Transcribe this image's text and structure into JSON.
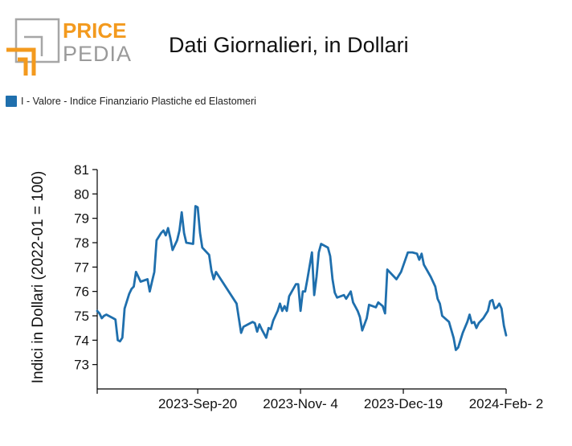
{
  "header": {
    "logo_top": "PRICE",
    "logo_bottom": "PEDIA"
  },
  "colors": {
    "series": "#1f6fad",
    "logo_orange": "#f39a1e",
    "logo_gray": "#9a9a9a"
  },
  "chart_data": {
    "type": "line",
    "title": "Dati Giornalieri, in Dollari",
    "xlabel": "",
    "ylabel": "Indici in Dollari (2022-01 = 100)",
    "ylim": [
      72,
      81
    ],
    "yticks": [
      73,
      74,
      75,
      76,
      77,
      78,
      79,
      80,
      81
    ],
    "xlim": [
      "2023-08-07",
      "2024-02-02"
    ],
    "xticks": [
      {
        "date": "2023-08-07",
        "label": ""
      },
      {
        "date": "2023-09-20",
        "label": "2023-Sep-20"
      },
      {
        "date": "2023-11-04",
        "label": "2023-Nov- 4"
      },
      {
        "date": "2023-12-19",
        "label": "2023-Dec-19"
      },
      {
        "date": "2024-02-02",
        "label": "2024-Feb- 2"
      }
    ],
    "legend_position": "top-left",
    "grid": false,
    "series": [
      {
        "name": "I - Valore - Indice Finanziario Plastiche ed Elastomeri",
        "points": [
          [
            "2023-08-07",
            75.2
          ],
          [
            "2023-08-08",
            75.1
          ],
          [
            "2023-08-09",
            74.9
          ],
          [
            "2023-08-10",
            75.0
          ],
          [
            "2023-08-11",
            75.05
          ],
          [
            "2023-08-14",
            74.9
          ],
          [
            "2023-08-15",
            74.85
          ],
          [
            "2023-08-16",
            74.0
          ],
          [
            "2023-08-17",
            73.95
          ],
          [
            "2023-08-18",
            74.1
          ],
          [
            "2023-08-19",
            75.3
          ],
          [
            "2023-08-21",
            75.9
          ],
          [
            "2023-08-22",
            76.1
          ],
          [
            "2023-08-23",
            76.2
          ],
          [
            "2023-08-24",
            76.8
          ],
          [
            "2023-08-25",
            76.6
          ],
          [
            "2023-08-26",
            76.4
          ],
          [
            "2023-08-29",
            76.5
          ],
          [
            "2023-08-30",
            76.0
          ],
          [
            "2023-08-31",
            76.4
          ],
          [
            "2023-09-01",
            76.8
          ],
          [
            "2023-09-02",
            78.1
          ],
          [
            "2023-09-04",
            78.4
          ],
          [
            "2023-09-05",
            78.5
          ],
          [
            "2023-09-06",
            78.3
          ],
          [
            "2023-09-07",
            78.6
          ],
          [
            "2023-09-08",
            78.2
          ],
          [
            "2023-09-09",
            77.7
          ],
          [
            "2023-09-11",
            78.1
          ],
          [
            "2023-09-12",
            78.5
          ],
          [
            "2023-09-13",
            79.25
          ],
          [
            "2023-09-14",
            78.4
          ],
          [
            "2023-09-15",
            78.0
          ],
          [
            "2023-09-18",
            77.95
          ],
          [
            "2023-09-19",
            79.5
          ],
          [
            "2023-09-20",
            79.45
          ],
          [
            "2023-09-21",
            78.4
          ],
          [
            "2023-09-22",
            77.8
          ],
          [
            "2023-09-25",
            77.5
          ],
          [
            "2023-09-26",
            76.85
          ],
          [
            "2023-09-27",
            76.5
          ],
          [
            "2023-09-28",
            76.8
          ],
          [
            "2023-10-07",
            75.5
          ],
          [
            "2023-10-09",
            74.3
          ],
          [
            "2023-10-10",
            74.55
          ],
          [
            "2023-10-12",
            74.65
          ],
          [
            "2023-10-14",
            74.75
          ],
          [
            "2023-10-15",
            74.7
          ],
          [
            "2023-10-16",
            74.35
          ],
          [
            "2023-10-17",
            74.65
          ],
          [
            "2023-10-18",
            74.45
          ],
          [
            "2023-10-20",
            74.1
          ],
          [
            "2023-10-21",
            74.5
          ],
          [
            "2023-10-22",
            74.45
          ],
          [
            "2023-10-23",
            74.8
          ],
          [
            "2023-10-25",
            75.2
          ],
          [
            "2023-10-26",
            75.5
          ],
          [
            "2023-10-27",
            75.2
          ],
          [
            "2023-10-28",
            75.4
          ],
          [
            "2023-10-29",
            75.2
          ],
          [
            "2023-10-30",
            75.8
          ],
          [
            "2023-11-02",
            76.3
          ],
          [
            "2023-11-03",
            76.3
          ],
          [
            "2023-11-04",
            75.2
          ],
          [
            "2023-11-05",
            76.0
          ],
          [
            "2023-11-06",
            76.0
          ],
          [
            "2023-11-07",
            76.5
          ],
          [
            "2023-11-09",
            77.6
          ],
          [
            "2023-11-10",
            75.85
          ],
          [
            "2023-11-11",
            76.6
          ],
          [
            "2023-11-12",
            77.6
          ],
          [
            "2023-11-13",
            77.95
          ],
          [
            "2023-11-16",
            77.8
          ],
          [
            "2023-11-17",
            77.45
          ],
          [
            "2023-11-18",
            76.5
          ],
          [
            "2023-11-19",
            75.95
          ],
          [
            "2023-11-20",
            75.75
          ],
          [
            "2023-11-23",
            75.85
          ],
          [
            "2023-11-24",
            75.7
          ],
          [
            "2023-11-26",
            76.0
          ],
          [
            "2023-11-27",
            75.55
          ],
          [
            "2023-11-29",
            75.2
          ],
          [
            "2023-11-30",
            74.95
          ],
          [
            "2023-12-01",
            74.4
          ],
          [
            "2023-12-03",
            74.9
          ],
          [
            "2023-12-04",
            75.45
          ],
          [
            "2023-12-07",
            75.35
          ],
          [
            "2023-12-08",
            75.55
          ],
          [
            "2023-12-10",
            75.4
          ],
          [
            "2023-12-11",
            75.1
          ],
          [
            "2023-12-12",
            76.9
          ],
          [
            "2023-12-16",
            76.5
          ],
          [
            "2023-12-18",
            76.8
          ],
          [
            "2023-12-21",
            77.6
          ],
          [
            "2023-12-23",
            77.6
          ],
          [
            "2023-12-25",
            77.55
          ],
          [
            "2023-12-26",
            77.3
          ],
          [
            "2023-12-27",
            77.55
          ],
          [
            "2023-12-28",
            77.1
          ],
          [
            "2023-12-31",
            76.6
          ],
          [
            "2024-01-02",
            76.2
          ],
          [
            "2024-01-03",
            75.7
          ],
          [
            "2024-01-04",
            75.5
          ],
          [
            "2024-01-05",
            75.0
          ],
          [
            "2024-01-08",
            74.75
          ],
          [
            "2024-01-10",
            74.1
          ],
          [
            "2024-01-11",
            73.6
          ],
          [
            "2024-01-12",
            73.7
          ],
          [
            "2024-01-14",
            74.3
          ],
          [
            "2024-01-16",
            74.75
          ],
          [
            "2024-01-17",
            75.05
          ],
          [
            "2024-01-18",
            74.7
          ],
          [
            "2024-01-19",
            74.75
          ],
          [
            "2024-01-20",
            74.5
          ],
          [
            "2024-01-21",
            74.7
          ],
          [
            "2024-01-23",
            74.9
          ],
          [
            "2024-01-25",
            75.2
          ],
          [
            "2024-01-26",
            75.6
          ],
          [
            "2024-01-27",
            75.65
          ],
          [
            "2024-01-28",
            75.3
          ],
          [
            "2024-01-29",
            75.35
          ],
          [
            "2024-01-30",
            75.5
          ],
          [
            "2024-01-31",
            75.3
          ],
          [
            "2024-02-01",
            74.6
          ],
          [
            "2024-02-02",
            74.2
          ]
        ]
      }
    ]
  }
}
